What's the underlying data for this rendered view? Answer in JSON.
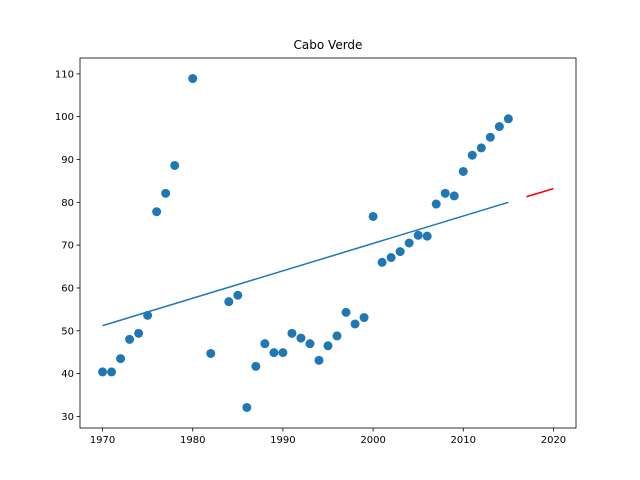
{
  "chart_data": {
    "type": "scatter",
    "title": "Cabo Verde",
    "xlabel": "",
    "ylabel": "",
    "xlim": [
      1967.5,
      2022.5
    ],
    "ylim": [
      27.3,
      113.7
    ],
    "xticks": [
      1970,
      1980,
      1990,
      2000,
      2010,
      2020
    ],
    "yticks": [
      30,
      40,
      50,
      60,
      70,
      80,
      90,
      100,
      110
    ],
    "grid": false,
    "colors": {
      "points": "#1f77b4",
      "fit": "#1f77b4",
      "forecast": "#ff0000"
    },
    "points": [
      {
        "x": 1970,
        "y": 40.4
      },
      {
        "x": 1971,
        "y": 40.4
      },
      {
        "x": 1972,
        "y": 43.5
      },
      {
        "x": 1973,
        "y": 48.0
      },
      {
        "x": 1974,
        "y": 49.4
      },
      {
        "x": 1975,
        "y": 53.6
      },
      {
        "x": 1976,
        "y": 77.8
      },
      {
        "x": 1977,
        "y": 82.1
      },
      {
        "x": 1978,
        "y": 88.6
      },
      {
        "x": 1980,
        "y": 108.9
      },
      {
        "x": 1982,
        "y": 44.7
      },
      {
        "x": 1984,
        "y": 56.8
      },
      {
        "x": 1985,
        "y": 58.3
      },
      {
        "x": 1986,
        "y": 32.1
      },
      {
        "x": 1987,
        "y": 41.7
      },
      {
        "x": 1988,
        "y": 47.0
      },
      {
        "x": 1989,
        "y": 44.9
      },
      {
        "x": 1990,
        "y": 44.9
      },
      {
        "x": 1991,
        "y": 49.4
      },
      {
        "x": 1992,
        "y": 48.3
      },
      {
        "x": 1993,
        "y": 47.0
      },
      {
        "x": 1994,
        "y": 43.1
      },
      {
        "x": 1995,
        "y": 46.5
      },
      {
        "x": 1996,
        "y": 48.8
      },
      {
        "x": 1997,
        "y": 54.3
      },
      {
        "x": 1998,
        "y": 51.6
      },
      {
        "x": 1999,
        "y": 53.1
      },
      {
        "x": 2000,
        "y": 76.7
      },
      {
        "x": 2001,
        "y": 66.0
      },
      {
        "x": 2002,
        "y": 67.1
      },
      {
        "x": 2003,
        "y": 68.5
      },
      {
        "x": 2004,
        "y": 70.5
      },
      {
        "x": 2005,
        "y": 72.3
      },
      {
        "x": 2006,
        "y": 72.1
      },
      {
        "x": 2007,
        "y": 79.6
      },
      {
        "x": 2008,
        "y": 82.1
      },
      {
        "x": 2009,
        "y": 81.5
      },
      {
        "x": 2010,
        "y": 87.2
      },
      {
        "x": 2011,
        "y": 91.0
      },
      {
        "x": 2012,
        "y": 92.7
      },
      {
        "x": 2013,
        "y": 95.2
      },
      {
        "x": 2014,
        "y": 97.7
      },
      {
        "x": 2015,
        "y": 99.5
      }
    ],
    "fit_line": [
      {
        "x": 1970,
        "y": 51.2
      },
      {
        "x": 2015,
        "y": 80.0
      }
    ],
    "forecast_line": [
      {
        "x": 2017,
        "y": 81.3
      },
      {
        "x": 2020,
        "y": 83.2
      }
    ]
  }
}
